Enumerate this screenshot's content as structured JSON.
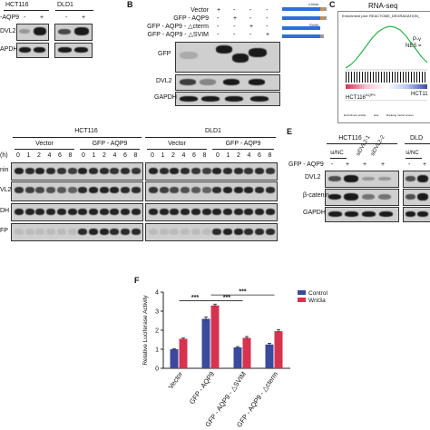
{
  "panelA": {
    "cell_lines": [
      "HCT116",
      "DLD1"
    ],
    "row_plus_label": "-AQP9",
    "signs": [
      "-",
      "+",
      "-",
      "+"
    ],
    "rows": [
      "DVL2",
      "APDH"
    ]
  },
  "panelB": {
    "letter": "B",
    "conditions": [
      "Vector",
      "GFP - AQP9",
      "GFP - AQP9 - △cterm",
      "GFP - AQP9 - △SVIM"
    ],
    "signs": [
      [
        "+",
        "-",
        "-",
        "-"
      ],
      [
        "-",
        "+",
        "-",
        "-"
      ],
      [
        "-",
        "-",
        "+",
        "-"
      ],
      [
        "-",
        "-",
        "-",
        "+"
      ]
    ],
    "schematic_labels": [
      "c-term",
      "SVIM"
    ],
    "blot_rows": [
      "GFP",
      "DVL2",
      "GAPDH"
    ]
  },
  "panelC": {
    "letter": "C",
    "title": "RNA-seq",
    "plot_title": "Enrichment plot: REACTOME_DEGRADATION_",
    "stat_p": "P-v",
    "stat_nes": "NES =",
    "group_left": "HCT116",
    "group_left_sup": "AQP9",
    "group_right": "HCT11",
    "legend_items": [
      "Enrichment profile",
      "Hits",
      "Ranking metric scores"
    ]
  },
  "panelD": {
    "cell_lines": [
      "HCT116",
      "DLD1"
    ],
    "groups": [
      "Vector",
      "GFP - AQP9",
      "Vector",
      "GFP - AQP9"
    ],
    "time_label": "(h)",
    "timepoints": [
      "0",
      "1",
      "2",
      "4",
      "6",
      "8",
      "0",
      "1",
      "2",
      "4",
      "6",
      "8",
      "0",
      "1",
      "2",
      "4",
      "6",
      "8",
      "0",
      "1",
      "2",
      "4",
      "6",
      "8"
    ],
    "rows": [
      "nin",
      "VL2",
      "DH",
      "FP"
    ]
  },
  "panelE": {
    "letter": "E",
    "cell_lines": [
      "HCT116",
      "DLD"
    ],
    "sirnas": [
      "si/NC",
      "siDVL2-1",
      "siDVL2-2",
      "si/NC"
    ],
    "row_label": "GFP - AQP9",
    "signs": [
      "-",
      "+",
      "+",
      "+",
      "-",
      "+"
    ],
    "blot_rows": [
      "DVL2",
      "β-catenin",
      "GAPDH"
    ]
  },
  "panelF": {
    "letter": "F",
    "chart_data": {
      "type": "bar",
      "categories": [
        "Vector",
        "GFP - AQP9",
        "GFP - AQP9 - △SVIM",
        "GFP - AQP9 - △cterm"
      ],
      "series": [
        {
          "name": "Control",
          "values": [
            1.0,
            2.6,
            1.1,
            1.25
          ],
          "errors": [
            0.03,
            0.1,
            0.04,
            0.06
          ],
          "color": "#3b4a9c"
        },
        {
          "name": "Wnt3a",
          "values": [
            1.55,
            3.3,
            1.6,
            1.95
          ],
          "errors": [
            0.04,
            0.07,
            0.07,
            0.07
          ],
          "color": "#d6334f"
        }
      ],
      "ylabel": "Relative Luciferase Activity",
      "yticks": [
        "0",
        "1",
        "2",
        "3",
        "4"
      ],
      "ylim": [
        0,
        4
      ],
      "significance": [
        "***",
        "***",
        "***"
      ],
      "legend_position": "top-right"
    }
  }
}
